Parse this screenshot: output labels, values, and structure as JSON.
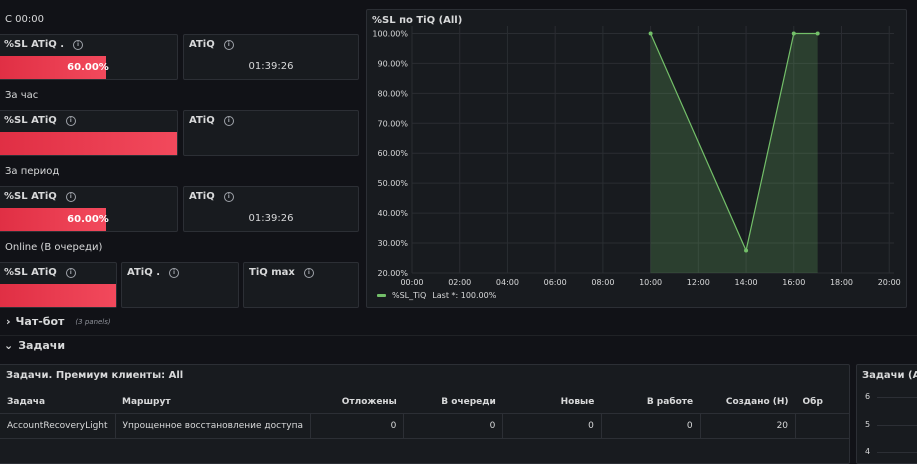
{
  "sections": {
    "s00": "С 00:00",
    "hour": "За час",
    "period": "За период",
    "online": "Online (В очереди)"
  },
  "panels": {
    "s00_sl": {
      "title": "%SL ATiQ .",
      "value": "60.00%",
      "level": 0.6
    },
    "s00_atiq": {
      "title": "ATiQ",
      "value": "01:39:26"
    },
    "hour_sl": {
      "title": "%SL ATiQ",
      "value": "",
      "level": 1.0
    },
    "hour_atiq": {
      "title": "ATiQ",
      "value": ""
    },
    "period_sl": {
      "title": "%SL ATiQ",
      "value": "60.00%",
      "level": 0.6
    },
    "period_atiq": {
      "title": "ATiQ",
      "value": "01:39:26"
    },
    "online_sl": {
      "title": "%SL ATiQ",
      "value": "",
      "level": 1.0
    },
    "online_atiq": {
      "title": "ATiQ .",
      "value": ""
    },
    "online_tiq": {
      "title": "TiQ max",
      "value": ""
    }
  },
  "chart_panel": {
    "title": "%SL по TiQ (All)",
    "legend_name": "%SL_TiQ",
    "legend_stat": "Last *: 100.00%"
  },
  "chart_data": {
    "type": "area",
    "title": "%SL по TiQ (All)",
    "x_ticks": [
      "00:00",
      "02:00",
      "04:00",
      "06:00",
      "08:00",
      "10:00",
      "12:00",
      "14:00",
      "16:00",
      "18:00",
      "20:00"
    ],
    "y_ticks": [
      "20.00%",
      "30.00%",
      "40.00%",
      "50.00%",
      "60.00%",
      "70.00%",
      "80.00%",
      "90.00%",
      "100.00%"
    ],
    "xlim_hours": [
      0,
      20.2
    ],
    "ylim": [
      20,
      102.5
    ],
    "grid": true,
    "legend": "bottom-left",
    "series": [
      {
        "name": "%SL_TiQ",
        "color": "#73bf69",
        "x_hours": [
          10,
          14,
          16,
          17
        ],
        "values": [
          100,
          27.5,
          100,
          100
        ]
      }
    ]
  },
  "rows": {
    "chatbot": {
      "label": "Чат-бот",
      "sub": "(3 panels)",
      "chevron": "›"
    },
    "tasks": {
      "label": "Задачи",
      "chevron": "⌄"
    }
  },
  "tasks_table": {
    "title": "Задачи. Премиум клиенты: All",
    "headers": [
      "Задача",
      "Маршрут",
      "Отложены",
      "В очереди",
      "Новые",
      "В работе",
      "Создано (Н)",
      "Обр"
    ],
    "rows": [
      [
        "AccountRecoveryLight",
        "Упрощенное восстановление доступа",
        "0",
        "0",
        "0",
        "0",
        "20",
        ""
      ]
    ]
  },
  "tasks_all": {
    "title": "Задачи (All)",
    "y_ticks": [
      "6",
      "5",
      "4"
    ]
  }
}
